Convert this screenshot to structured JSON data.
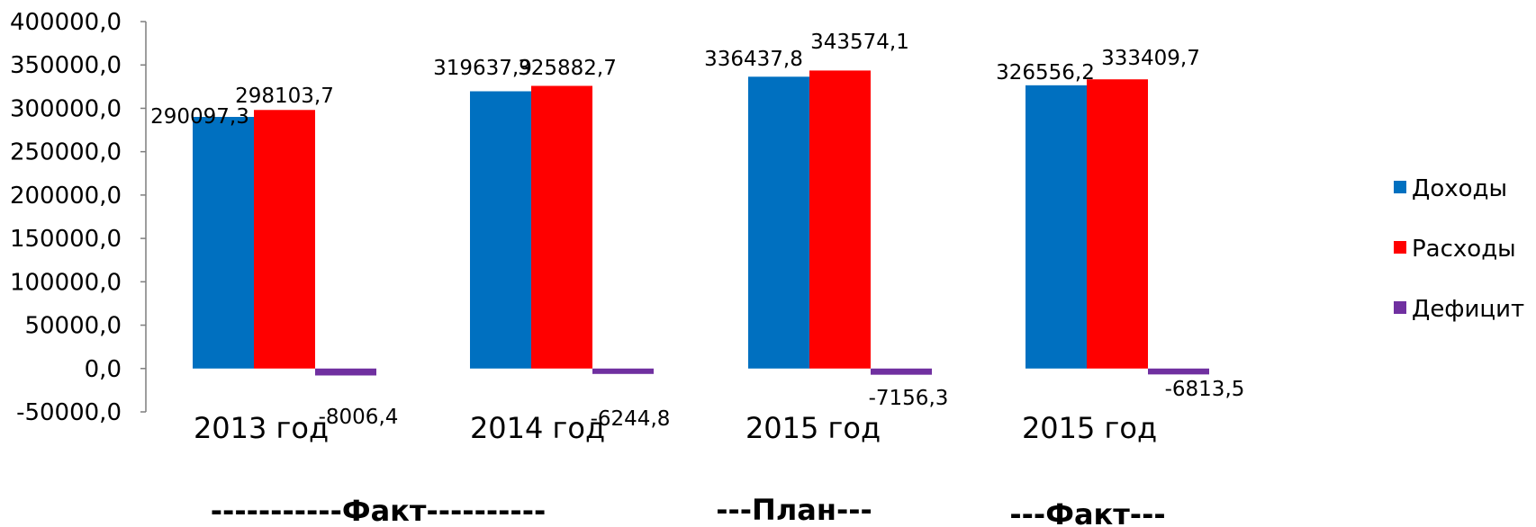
{
  "chart_data": {
    "type": "bar",
    "categories": [
      "2013 год",
      "2014 год",
      "2015 год",
      "2015 год"
    ],
    "series": [
      {
        "name": "Доходы",
        "values": [
          290097.3,
          319637.9,
          336437.8,
          326556.2
        ],
        "labels": [
          "290097,3",
          "319637,9",
          "336437,8",
          "326556,2"
        ],
        "color": "#0070C0"
      },
      {
        "name": "Расходы",
        "values": [
          298103.7,
          325882.7,
          343574.1,
          333409.7
        ],
        "labels": [
          "298103,7",
          "325882,7",
          "343574,1",
          "333409,7"
        ],
        "color": "#FF0000"
      },
      {
        "name": "Дефицит",
        "values": [
          -8006.4,
          -6244.8,
          -7156.3,
          -6813.5
        ],
        "labels": [
          "-8006,4",
          "-6244,8",
          "-7156,3",
          "-6813,5"
        ],
        "color": "#7030A0"
      }
    ],
    "ylim": [
      -50000,
      400000
    ],
    "yticks": [
      400000,
      350000,
      300000,
      250000,
      200000,
      150000,
      100000,
      50000,
      0,
      -50000
    ],
    "ytick_labels": [
      "400000,0",
      "350000,0",
      "300000,0",
      "250000,0",
      "200000,0",
      "150000,0",
      "100000,0",
      "50000,0",
      "0,0",
      "-50000,0"
    ],
    "annotations": [
      "-----------Факт----------",
      "---План---",
      "---Факт---"
    ],
    "legend_position": "right",
    "grid": false
  }
}
